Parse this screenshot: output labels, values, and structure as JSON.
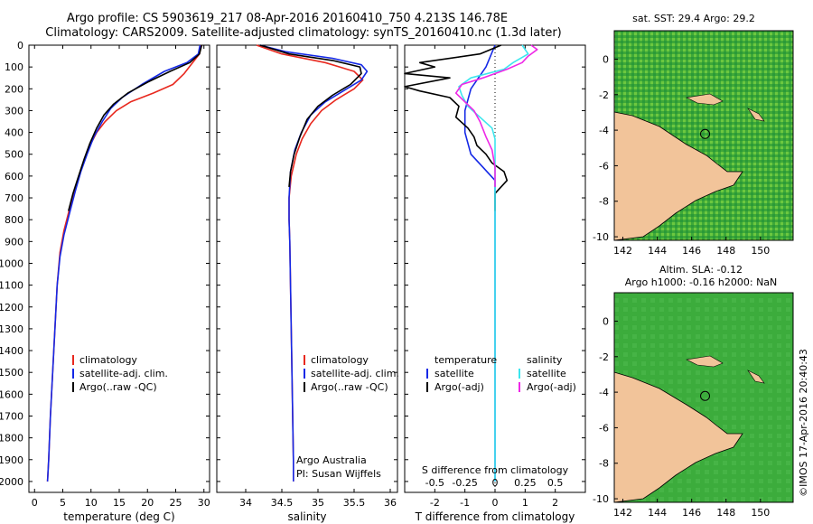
{
  "header": {
    "line1": "Argo profile: CS 5903619_217 08-Apr-2016 20160410_750 4.213S 146.78E",
    "line2": "Climatology: CARS2009. Satellite-adjusted climatology: synTS_20160410.nc (1.3d later)"
  },
  "depth_ticks": [
    0,
    100,
    200,
    300,
    400,
    500,
    600,
    700,
    800,
    900,
    1000,
    1100,
    1200,
    1300,
    1400,
    1500,
    1600,
    1700,
    1800,
    1900,
    2000
  ],
  "colors": {
    "climatology": "#e8281e",
    "satellite": "#1428e6",
    "argo": "#000000",
    "sat_salinity": "#3ce6ee",
    "argo_salinity": "#ee28e6",
    "land": "#f2c49a"
  },
  "chart_data": [
    {
      "type": "line",
      "panel": "temperature",
      "xlabel": "temperature (deg C)",
      "ylabel": "",
      "xlim": [
        -1,
        31
      ],
      "ylim": [
        2050,
        0
      ],
      "xticks": [
        0,
        5,
        10,
        15,
        20,
        25,
        30
      ],
      "legend": [
        "climatology",
        "satellite-adj. clim.",
        "Argo(..raw -QC)"
      ],
      "series": [
        {
          "name": "climatology",
          "color": "#e8281e",
          "points": [
            [
              29.5,
              0
            ],
            [
              29.2,
              40
            ],
            [
              28,
              80
            ],
            [
              26.5,
              130
            ],
            [
              24.5,
              180
            ],
            [
              21,
              220
            ],
            [
              17,
              260
            ],
            [
              14.5,
              300
            ],
            [
              12.5,
              350
            ],
            [
              11,
              400
            ],
            [
              9.8,
              460
            ],
            [
              8.5,
              550
            ],
            [
              7.3,
              650
            ],
            [
              6.2,
              750
            ],
            [
              5.2,
              850
            ],
            [
              4.5,
              950
            ],
            [
              4,
              1100
            ],
            [
              3.6,
              1300
            ],
            [
              3.2,
              1500
            ],
            [
              2.8,
              1700
            ],
            [
              2.5,
              1900
            ],
            [
              2.3,
              2000
            ]
          ]
        },
        {
          "name": "satellite-adj. clim.",
          "color": "#1428e6",
          "points": [
            [
              29.3,
              0
            ],
            [
              29,
              40
            ],
            [
              27,
              80
            ],
            [
              23,
              120
            ],
            [
              19,
              180
            ],
            [
              15.5,
              240
            ],
            [
              13.5,
              290
            ],
            [
              12,
              350
            ],
            [
              10.5,
              420
            ],
            [
              9.3,
              500
            ],
            [
              8.2,
              580
            ],
            [
              7.2,
              670
            ],
            [
              6.2,
              770
            ],
            [
              5.2,
              870
            ],
            [
              4.5,
              970
            ],
            [
              4,
              1100
            ],
            [
              3.6,
              1300
            ],
            [
              3.2,
              1500
            ],
            [
              2.8,
              1700
            ],
            [
              2.5,
              1900
            ],
            [
              2.3,
              2000
            ]
          ]
        },
        {
          "name": "Argo(..raw -QC)",
          "color": "#000000",
          "points": [
            [
              29.6,
              0
            ],
            [
              29.2,
              40
            ],
            [
              27.5,
              80
            ],
            [
              24,
              120
            ],
            [
              20,
              170
            ],
            [
              16.5,
              220
            ],
            [
              14,
              270
            ],
            [
              12.3,
              320
            ],
            [
              11,
              380
            ],
            [
              9.8,
              450
            ],
            [
              8.8,
              520
            ],
            [
              7.8,
              600
            ],
            [
              6.8,
              680
            ],
            [
              6,
              760
            ]
          ]
        }
      ]
    },
    {
      "type": "line",
      "panel": "salinity",
      "xlabel": "salinity",
      "ylabel": "",
      "xlim": [
        33.6,
        36.1
      ],
      "ylim": [
        2050,
        0
      ],
      "xticks": [
        34,
        34.5,
        35,
        35.5,
        36
      ],
      "legend": [
        "climatology",
        "satellite-adj. clim.",
        "Argo(..raw -QC)"
      ],
      "footnote": [
        "Argo Australia",
        "PI: Susan Wijffels"
      ],
      "series": [
        {
          "name": "climatology",
          "color": "#e8281e",
          "points": [
            [
              34.15,
              0
            ],
            [
              34.5,
              40
            ],
            [
              35.1,
              80
            ],
            [
              35.5,
              120
            ],
            [
              35.62,
              160
            ],
            [
              35.5,
              200
            ],
            [
              35.25,
              250
            ],
            [
              35.05,
              300
            ],
            [
              34.9,
              360
            ],
            [
              34.78,
              430
            ],
            [
              34.7,
              500
            ],
            [
              34.63,
              600
            ],
            [
              34.6,
              700
            ],
            [
              34.6,
              800
            ],
            [
              34.61,
              900
            ],
            [
              34.62,
              1100
            ],
            [
              34.63,
              1300
            ],
            [
              34.64,
              1500
            ],
            [
              34.65,
              1700
            ],
            [
              34.66,
              1900
            ],
            [
              34.66,
              2000
            ]
          ]
        },
        {
          "name": "satellite-adj. clim.",
          "color": "#1428e6",
          "points": [
            [
              34.2,
              0
            ],
            [
              34.55,
              30
            ],
            [
              35.2,
              60
            ],
            [
              35.6,
              90
            ],
            [
              35.68,
              120
            ],
            [
              35.6,
              160
            ],
            [
              35.35,
              210
            ],
            [
              35.1,
              260
            ],
            [
              34.9,
              320
            ],
            [
              34.77,
              400
            ],
            [
              34.68,
              480
            ],
            [
              34.62,
              580
            ],
            [
              34.6,
              700
            ],
            [
              34.6,
              800
            ],
            [
              34.61,
              900
            ],
            [
              34.62,
              1100
            ],
            [
              34.63,
              1300
            ],
            [
              34.64,
              1500
            ],
            [
              34.65,
              1700
            ],
            [
              34.66,
              1900
            ],
            [
              34.66,
              2000
            ]
          ]
        },
        {
          "name": "Argo(..raw -QC)",
          "color": "#000000",
          "points": [
            [
              34.2,
              0
            ],
            [
              34.6,
              40
            ],
            [
              35.2,
              70
            ],
            [
              35.58,
              100
            ],
            [
              35.6,
              130
            ],
            [
              35.45,
              180
            ],
            [
              35.2,
              230
            ],
            [
              35,
              280
            ],
            [
              34.85,
              340
            ],
            [
              34.75,
              420
            ],
            [
              34.67,
              500
            ],
            [
              34.62,
              580
            ],
            [
              34.6,
              650
            ]
          ]
        }
      ]
    },
    {
      "type": "line",
      "panel": "differences",
      "xlabel": "T difference from climatology",
      "xlabel_top": "S difference from climatology",
      "xlim": [
        -3,
        3
      ],
      "ylim": [
        2050,
        0
      ],
      "xticks": [
        -2,
        -1,
        0,
        1,
        2
      ],
      "xticks_salinity": [
        "-0.5",
        "-0.25",
        "0",
        "0.25",
        "0.5"
      ],
      "legend_titles": [
        "temperature",
        "salinity"
      ],
      "legend": [
        "satellite",
        "Argo(-adj)",
        "satellite",
        "Argo(-adj)"
      ],
      "series": [
        {
          "name": "temperature satellite",
          "color": "#1428e6",
          "points": [
            [
              0,
              0
            ],
            [
              -0.3,
              100
            ],
            [
              -0.8,
              200
            ],
            [
              -1,
              300
            ],
            [
              -1,
              400
            ],
            [
              -0.8,
              500
            ],
            [
              -0.4,
              560
            ],
            [
              0,
              620
            ],
            [
              0,
              800
            ],
            [
              0,
              1200
            ],
            [
              0,
              1600
            ],
            [
              0,
              2000
            ]
          ]
        },
        {
          "name": "temperature Argo(-adj)",
          "color": "#000000",
          "points": [
            [
              0.2,
              0
            ],
            [
              -0.5,
              40
            ],
            [
              -2.5,
              80
            ],
            [
              -2,
              100
            ],
            [
              -3,
              130
            ],
            [
              -1.5,
              150
            ],
            [
              -3,
              190
            ],
            [
              -2.5,
              210
            ],
            [
              -1.5,
              240
            ],
            [
              -1.2,
              280
            ],
            [
              -1.3,
              330
            ],
            [
              -0.9,
              380
            ],
            [
              -0.7,
              420
            ],
            [
              -0.6,
              460
            ],
            [
              -0.3,
              500
            ],
            [
              -0.1,
              540
            ],
            [
              0.3,
              580
            ],
            [
              0.4,
              620
            ],
            [
              0,
              680
            ],
            [
              0,
              760
            ]
          ]
        },
        {
          "name": "salinity satellite",
          "color": "#3ce6ee",
          "points": [
            [
              0.9,
              0
            ],
            [
              1.1,
              40
            ],
            [
              0.6,
              80
            ],
            [
              0.3,
              110
            ],
            [
              -0.8,
              150
            ],
            [
              -1.2,
              190
            ],
            [
              -1.1,
              230
            ],
            [
              -0.9,
              280
            ],
            [
              -0.5,
              330
            ],
            [
              -0.1,
              380
            ],
            [
              0,
              430
            ],
            [
              0,
              600
            ],
            [
              0,
              1000
            ],
            [
              0,
              1500
            ],
            [
              0,
              2000
            ]
          ]
        },
        {
          "name": "salinity Argo(-adj)",
          "color": "#ee28e6",
          "points": [
            [
              1.2,
              0
            ],
            [
              1.4,
              20
            ],
            [
              1.1,
              50
            ],
            [
              0.9,
              80
            ],
            [
              0.4,
              110
            ],
            [
              -0.4,
              150
            ],
            [
              -1.1,
              180
            ],
            [
              -1.3,
              220
            ],
            [
              -1,
              260
            ],
            [
              -0.7,
              300
            ],
            [
              -0.5,
              350
            ],
            [
              -0.3,
              420
            ],
            [
              -0.1,
              480
            ],
            [
              0,
              560
            ],
            [
              0,
              650
            ]
          ]
        }
      ]
    },
    {
      "type": "heatmap",
      "panel": "sst-map",
      "title": "sat. SST: 29.4 Argo: 29.2",
      "xlim": [
        141.5,
        151.9
      ],
      "ylim": [
        -10.2,
        1.6
      ],
      "xticks": [
        142,
        144,
        146,
        148,
        150
      ],
      "yticks": [
        0,
        -2,
        -4,
        -6,
        -8,
        -10
      ],
      "argo_position": [
        146.78,
        -4.213
      ]
    },
    {
      "type": "heatmap",
      "panel": "sla-map",
      "title_lines": [
        "Altim. SLA: -0.12",
        "Argo h1000: -0.16 h2000: NaN"
      ],
      "xlim": [
        141.5,
        151.9
      ],
      "ylim": [
        -10.2,
        1.6
      ],
      "xticks": [
        142,
        144,
        146,
        148,
        150
      ],
      "yticks": [
        0,
        -2,
        -4,
        -6,
        -8,
        -10
      ],
      "argo_position": [
        146.78,
        -4.213
      ]
    }
  ],
  "side_caption": "©IMOS 17-Apr-2016 20:40:43"
}
